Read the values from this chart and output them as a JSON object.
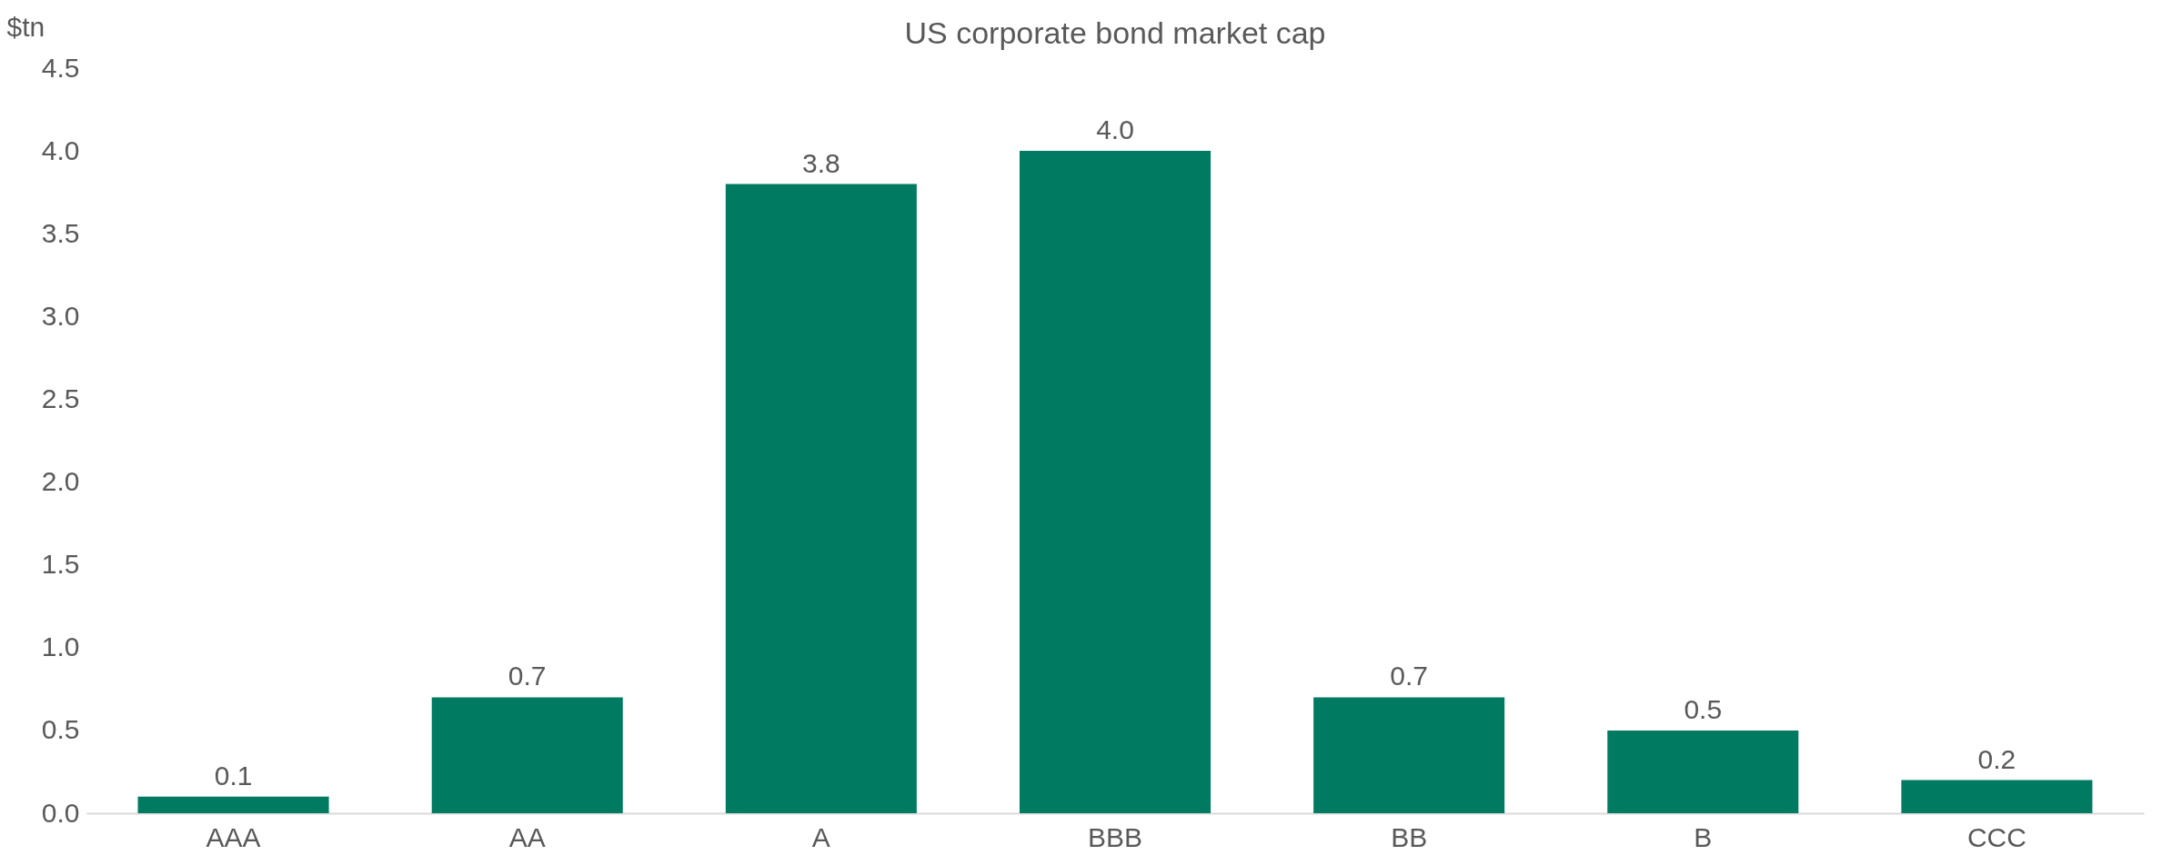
{
  "chart_data": {
    "type": "bar",
    "title": "US corporate bond market cap",
    "ylabel": "$tn",
    "categories": [
      "AAA",
      "AA",
      "A",
      "BBB",
      "BB",
      "B",
      "CCC"
    ],
    "values": [
      0.1,
      0.7,
      3.8,
      4.0,
      0.7,
      0.5,
      0.2
    ],
    "color": "#007b62",
    "ylim": [
      0,
      4.5
    ],
    "yticks": [
      {
        "value": 0,
        "label": "0.0"
      },
      {
        "value": 0.5,
        "label": "0.5"
      },
      {
        "value": 1,
        "label": "1.0"
      },
      {
        "value": 1.5,
        "label": "1.5"
      },
      {
        "value": 2,
        "label": "2.0"
      },
      {
        "value": 2.5,
        "label": "2.5"
      },
      {
        "value": 3,
        "label": "3.0"
      },
      {
        "value": 3.5,
        "label": "3.5"
      },
      {
        "value": 4,
        "label": "4.0"
      },
      {
        "value": 4.5,
        "label": "4.5"
      }
    ],
    "value_labels": [
      "0.1",
      "0.7",
      "3.8",
      "4.0",
      "0.7",
      "0.5",
      "0.2"
    ],
    "grid": false,
    "legend": false
  }
}
